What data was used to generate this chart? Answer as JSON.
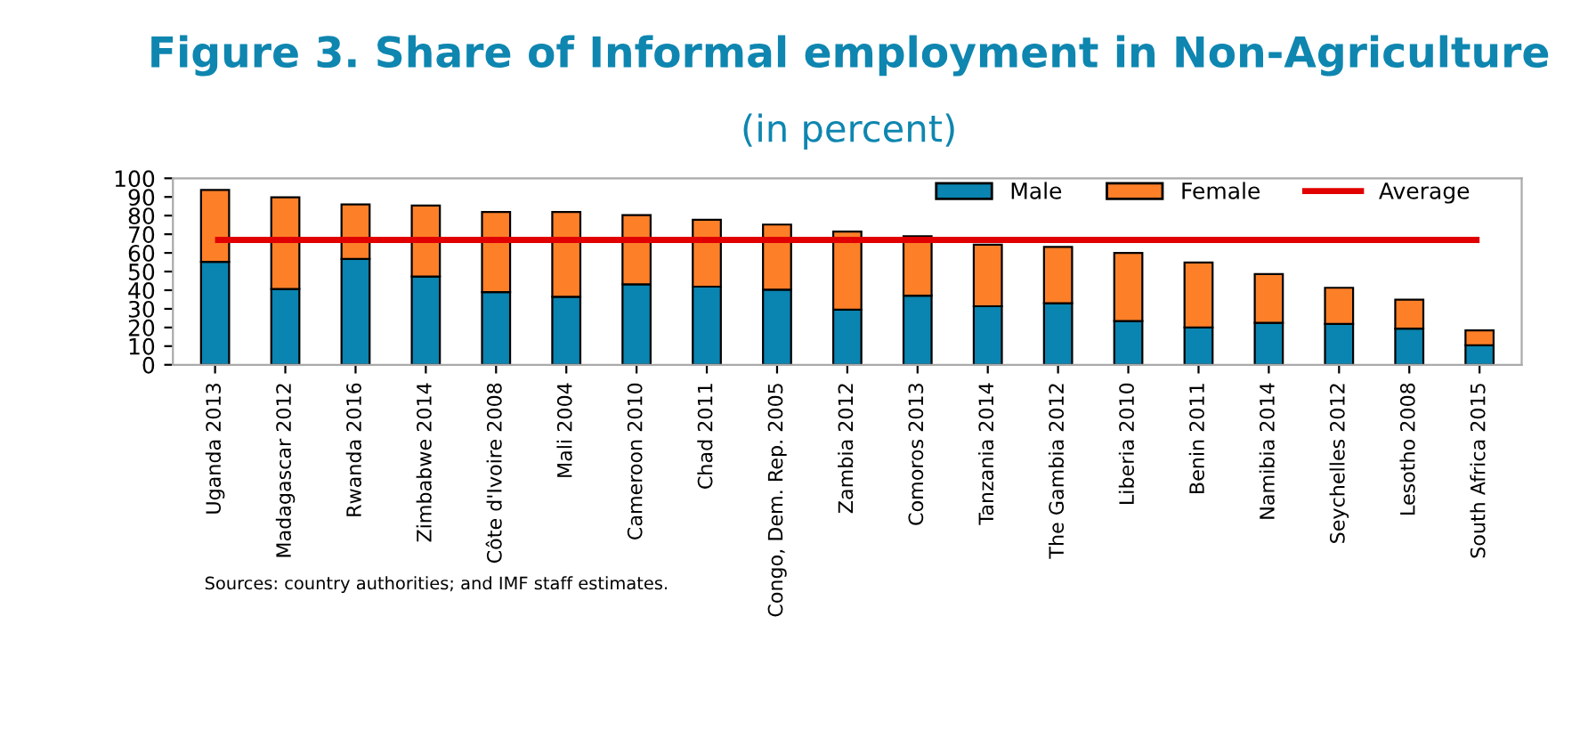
{
  "chart_data": {
    "type": "bar",
    "title": "Figure 3. Share of Informal employment in Non-Agriculture",
    "subtitle": "(in percent)",
    "categories": [
      "Uganda 2013",
      "Madagascar 2012",
      "Rwanda 2016",
      "Zimbabwe 2014",
      "Côte d'Ivoire 2008",
      "Mali 2004",
      "Cameroon 2010",
      "Chad 2011",
      "Congo, Dem. Rep. 2005",
      "Zambia 2012",
      "Comoros 2013",
      "Tanzania 2014",
      "The Gambia 2012",
      "Liberia 2010",
      "Benin 2011",
      "Namibia 2014",
      "Seychelles 2012",
      "Lesotho 2008",
      "South Africa 2015"
    ],
    "stacked": true,
    "series": [
      {
        "name": "Male",
        "color": "#0a84b0",
        "values": [
          55.2,
          40.6,
          56.8,
          47.3,
          39.0,
          36.5,
          43.2,
          41.9,
          40.3,
          29.5,
          37.1,
          31.4,
          33.0,
          23.5,
          20.0,
          22.5,
          21.9,
          19.4,
          10.5
        ]
      },
      {
        "name": "Female",
        "color": "#fd7f28",
        "values": [
          38.5,
          49.2,
          29.2,
          38.1,
          42.9,
          45.4,
          37.1,
          35.9,
          34.9,
          41.9,
          31.8,
          33.0,
          30.2,
          36.5,
          34.9,
          26.1,
          19.4,
          15.5,
          7.9
        ]
      }
    ],
    "ref_lines": [
      {
        "axis": "y",
        "value": 67,
        "label": "Average",
        "color": "#e00000",
        "line_style": "solid"
      }
    ],
    "ylim": [
      0,
      100
    ],
    "yticks": [
      0,
      10,
      20,
      30,
      40,
      50,
      60,
      70,
      80,
      90,
      100
    ],
    "grid": false,
    "legend": "top right",
    "annotations": [
      "Sources: country authorities; and IMF staff estimates."
    ]
  }
}
